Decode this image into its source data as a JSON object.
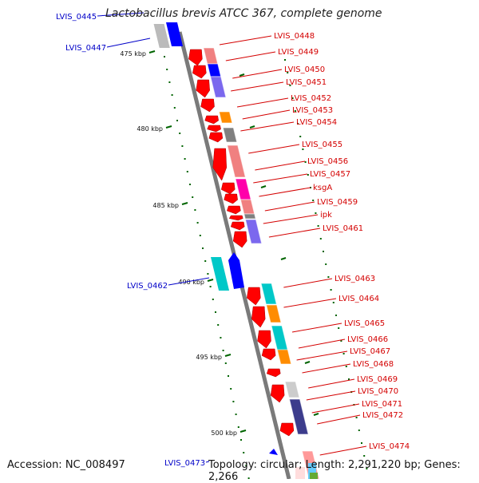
{
  "title": "Lactobacillus brevis ATCC 367, complete genome",
  "accession": "Accession: NC_008497",
  "topology": "Topology: circular; Length: 2,291,220 bp; Genes: 2,266",
  "scale": {
    "kbp_ticks": [
      "475 kbp",
      "480 kbp",
      "485 kbp",
      "490 kbp",
      "495 kbp",
      "500 kbp"
    ]
  },
  "right_labels": [
    "LVIS_0448",
    "LVIS_0449",
    "LVIS_0450",
    "LVIS_0451",
    "LVIS_0452",
    "LVIS_0453",
    "LVIS_0454",
    "LVIS_0455",
    "LVIS_0456",
    "LVIS_0457",
    "ksgA",
    "LVIS_0459",
    "ipk",
    "LVIS_0461",
    "LVIS_0463",
    "LVIS_0464",
    "LVIS_0465",
    "LVIS_0466",
    "LVIS_0467",
    "LVIS_0468",
    "LVIS_0469",
    "LVIS_0470",
    "LVIS_0471",
    "LVIS_0472",
    "LVIS_0474"
  ],
  "left_labels": [
    "LVIS_0445",
    "LVIS_0447",
    "LVIS_0462",
    "LVIS_0473"
  ],
  "colors": {
    "backbone": "#8c8c8c",
    "strand_red": "#ff0000",
    "salmon": "#f08080",
    "blue": "#0000ff",
    "violet": "#7b68ee",
    "orange": "#ff8c00",
    "gray": "#808080",
    "magenta": "#ff00aa",
    "cyan": "#00c8c8",
    "navy": "#3c3c8c",
    "tick_green": "#006400",
    "label_red": "#d40000",
    "label_blue": "#0000c8"
  }
}
